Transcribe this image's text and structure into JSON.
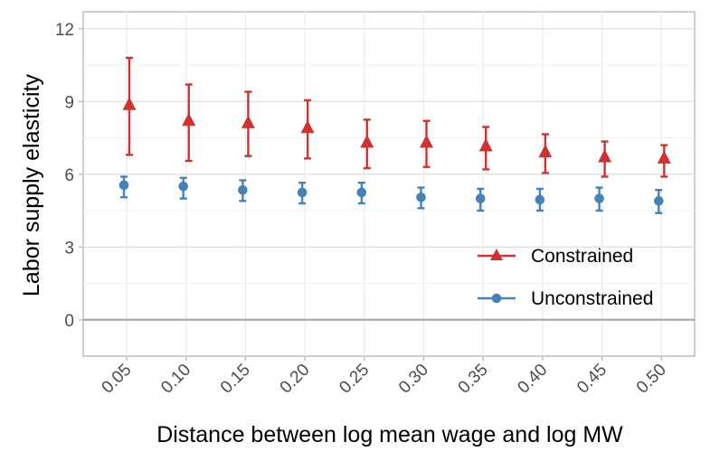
{
  "chart_data": {
    "type": "scatter",
    "subtype": "point-with-error-bars",
    "title": "",
    "xlabel": "Distance between log mean wage and log MW",
    "ylabel": "Labor supply elasticity",
    "categories": [
      "0.05",
      "0.10",
      "0.15",
      "0.20",
      "0.25",
      "0.30",
      "0.35",
      "0.40",
      "0.45",
      "0.50"
    ],
    "ylim": [
      -1.5,
      12.7
    ],
    "yticks": [
      0,
      3,
      6,
      9,
      12
    ],
    "y_minor_gridlines": [
      1.5,
      4.5,
      7.5,
      10.5
    ],
    "grid": true,
    "reference_line": 0,
    "legend_position": "bottom-right",
    "series": [
      {
        "name": "Constrained",
        "color": "#CC3333",
        "marker": "triangle",
        "values": [
          8.85,
          8.2,
          8.1,
          7.9,
          7.3,
          7.3,
          7.15,
          6.9,
          6.7,
          6.65
        ],
        "lower": [
          6.8,
          6.55,
          6.75,
          6.65,
          6.25,
          6.3,
          6.2,
          6.05,
          5.9,
          5.9
        ],
        "upper": [
          10.8,
          9.7,
          9.4,
          9.05,
          8.25,
          8.2,
          7.95,
          7.65,
          7.35,
          7.2
        ]
      },
      {
        "name": "Unconstrained",
        "color": "#4682B4",
        "marker": "circle",
        "values": [
          5.55,
          5.5,
          5.35,
          5.25,
          5.25,
          5.05,
          5.0,
          4.95,
          5.0,
          4.9
        ],
        "lower": [
          5.05,
          5.0,
          4.9,
          4.8,
          4.8,
          4.6,
          4.5,
          4.5,
          4.5,
          4.4
        ],
        "upper": [
          5.9,
          5.85,
          5.75,
          5.65,
          5.65,
          5.45,
          5.4,
          5.4,
          5.45,
          5.35
        ]
      }
    ]
  }
}
